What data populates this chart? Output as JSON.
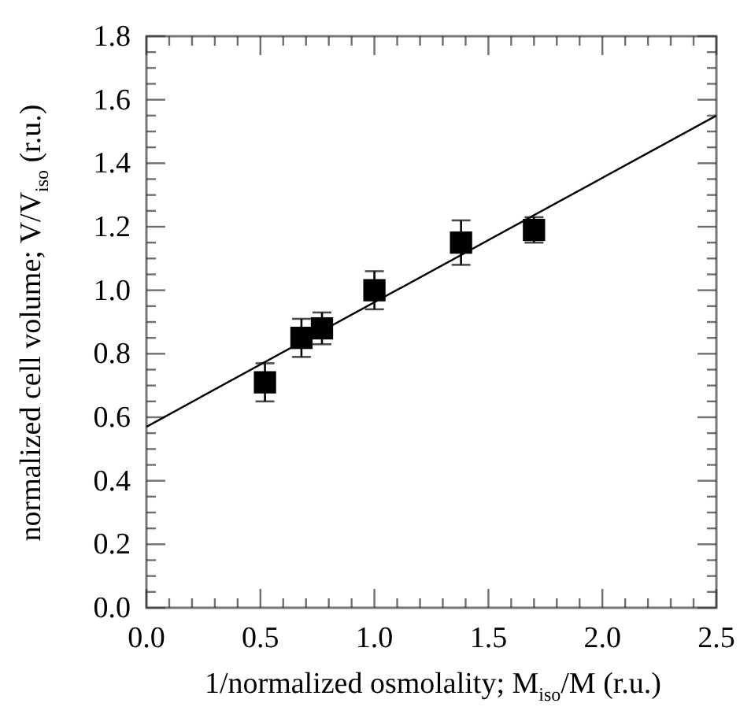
{
  "chart_data": {
    "type": "scatter",
    "xlabel": "1/normalized osmolality; M$_{iso}$/M (r.u.)",
    "ylabel": "normalized cell volume; V/V$_{iso}$ (r.u.)",
    "xlim": [
      0,
      2.5
    ],
    "ylim": [
      0,
      1.8
    ],
    "xticks": [
      {
        "value": 0,
        "label": "0.0"
      },
      {
        "value": 0.1,
        "label": null
      },
      {
        "value": 0.2,
        "label": null
      },
      {
        "value": 0.3,
        "label": null
      },
      {
        "value": 0.4,
        "label": null
      },
      {
        "value": 0.5,
        "label": "0.5"
      },
      {
        "value": 0.6,
        "label": null
      },
      {
        "value": 0.7,
        "label": null
      },
      {
        "value": 0.8,
        "label": null
      },
      {
        "value": 0.9,
        "label": null
      },
      {
        "value": 1,
        "label": "1.0"
      },
      {
        "value": 1.1,
        "label": null
      },
      {
        "value": 1.2,
        "label": null
      },
      {
        "value": 1.3,
        "label": null
      },
      {
        "value": 1.4,
        "label": null
      },
      {
        "value": 1.5,
        "label": "1.5"
      },
      {
        "value": 1.6,
        "label": null
      },
      {
        "value": 1.7,
        "label": null
      },
      {
        "value": 1.8,
        "label": null
      },
      {
        "value": 1.9,
        "label": null
      },
      {
        "value": 2,
        "label": "2.0"
      },
      {
        "value": 2.1,
        "label": null
      },
      {
        "value": 2.2,
        "label": null
      },
      {
        "value": 2.3,
        "label": null
      },
      {
        "value": 2.4,
        "label": null
      },
      {
        "value": 2.5,
        "label": "2.5"
      }
    ],
    "yticks": [
      {
        "value": 0,
        "label": "0.0"
      },
      {
        "value": 0.05,
        "label": null
      },
      {
        "value": 0.1,
        "label": null
      },
      {
        "value": 0.15,
        "label": null
      },
      {
        "value": 0.2,
        "label": "0.2"
      },
      {
        "value": 0.25,
        "label": null
      },
      {
        "value": 0.3,
        "label": null
      },
      {
        "value": 0.35,
        "label": null
      },
      {
        "value": 0.4,
        "label": "0.4"
      },
      {
        "value": 0.45,
        "label": null
      },
      {
        "value": 0.5,
        "label": null
      },
      {
        "value": 0.55,
        "label": null
      },
      {
        "value": 0.6,
        "label": "0.6"
      },
      {
        "value": 0.65,
        "label": null
      },
      {
        "value": 0.7,
        "label": null
      },
      {
        "value": 0.75,
        "label": null
      },
      {
        "value": 0.8,
        "label": "0.8"
      },
      {
        "value": 0.85,
        "label": null
      },
      {
        "value": 0.9,
        "label": null
      },
      {
        "value": 0.95,
        "label": null
      },
      {
        "value": 1,
        "label": "1.0"
      },
      {
        "value": 1.05,
        "label": null
      },
      {
        "value": 1.1,
        "label": null
      },
      {
        "value": 1.15,
        "label": null
      },
      {
        "value": 1.2,
        "label": "1.2"
      },
      {
        "value": 1.25,
        "label": null
      },
      {
        "value": 1.3,
        "label": null
      },
      {
        "value": 1.35,
        "label": null
      },
      {
        "value": 1.4,
        "label": "1.4"
      },
      {
        "value": 1.45,
        "label": null
      },
      {
        "value": 1.5,
        "label": null
      },
      {
        "value": 1.55,
        "label": null
      },
      {
        "value": 1.6,
        "label": "1.6"
      },
      {
        "value": 1.65,
        "label": null
      },
      {
        "value": 1.7,
        "label": null
      },
      {
        "value": 1.75,
        "label": null
      },
      {
        "value": 1.8,
        "label": "1.8"
      }
    ],
    "series": [
      {
        "type": "scatter",
        "color": "#000000",
        "marker": "square",
        "x": [
          0.52,
          0.68,
          0.77,
          1.0,
          1.38,
          1.7
        ],
        "values": [
          0.71,
          0.85,
          0.88,
          1.0,
          1.15,
          1.19
        ],
        "errors": [
          0.06,
          0.06,
          0.05,
          0.06,
          0.07,
          0.04
        ]
      },
      {
        "type": "line",
        "color": "#000000",
        "x": [
          0,
          2.5
        ],
        "values": [
          0.57,
          1.55
        ]
      }
    ]
  }
}
